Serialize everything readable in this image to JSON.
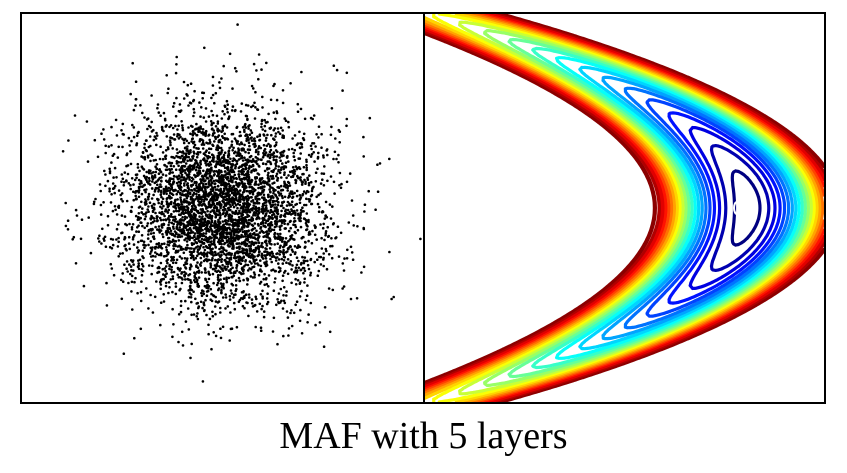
{
  "caption": "MAF with 5 layers",
  "chart_data": [
    {
      "type": "scatter",
      "panel": "left",
      "description_of_data": "samples from base distribution",
      "distribution": "standard_normal_2d",
      "n_points": 4500,
      "xlim": [
        -4,
        4
      ],
      "ylim": [
        -4,
        4
      ],
      "point_color": "#000000",
      "grid": false,
      "title": "",
      "xlabel": "",
      "ylabel": ""
    },
    {
      "type": "contour",
      "panel": "right",
      "description_of_data": "learned density (banana shape)",
      "density": "banana",
      "xlim": [
        -2.6,
        1.3
      ],
      "ylim": [
        -1.4,
        1.4
      ],
      "n_levels": 22,
      "colormap": "jet",
      "outer_color": "#8b0000",
      "grid": false,
      "title": "",
      "xlabel": "",
      "ylabel": ""
    }
  ]
}
